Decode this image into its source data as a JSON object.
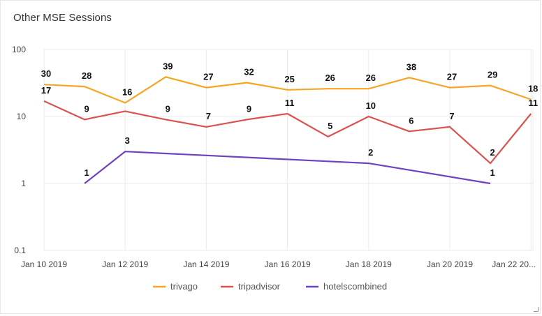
{
  "widget": {
    "title": "Other MSE Sessions"
  },
  "chart_data": {
    "type": "line",
    "y_scale": "log",
    "ylim": [
      0.1,
      100
    ],
    "y_ticks": [
      "100",
      "10",
      "1",
      "0.1"
    ],
    "x_tick_labels": [
      "Jan 10 2019",
      "Jan 12 2019",
      "Jan 14 2019",
      "Jan 16 2019",
      "Jan 18 2019",
      "Jan 20 2019",
      "Jan 22 20..."
    ],
    "x": [
      "2019-01-10",
      "2019-01-11",
      "2019-01-12",
      "2019-01-13",
      "2019-01-14",
      "2019-01-15",
      "2019-01-16",
      "2019-01-17",
      "2019-01-18",
      "2019-01-19",
      "2019-01-20",
      "2019-01-21",
      "2019-01-22"
    ],
    "series": [
      {
        "name": "trivago",
        "color": "#f5a623",
        "values": [
          30,
          28,
          16,
          39,
          27,
          32,
          25,
          26,
          26,
          38,
          27,
          29,
          18
        ]
      },
      {
        "name": "tripadvisor",
        "color": "#d9534f",
        "values": [
          17,
          9,
          12,
          9,
          7,
          9,
          11,
          5,
          10,
          6,
          7,
          2,
          11
        ]
      },
      {
        "name": "hotelscombined",
        "color": "#6f42c1",
        "values": [
          null,
          1,
          3,
          null,
          null,
          null,
          null,
          null,
          2,
          null,
          null,
          1,
          null
        ]
      }
    ],
    "data_labels": {
      "trivago": [
        "30",
        "28",
        "16",
        "39",
        "27",
        "32",
        "25",
        "26",
        "26",
        "38",
        "27",
        "29",
        "18"
      ],
      "tripadvisor": [
        "17",
        "9",
        "",
        "9",
        "7",
        "9",
        "11",
        "5",
        "10",
        "6",
        "7",
        "2",
        "11"
      ],
      "hotelscombined": [
        "",
        "1",
        "3",
        "",
        "",
        "",
        "",
        "",
        "2",
        "",
        "",
        "1",
        ""
      ]
    },
    "grid": true,
    "legend_position": "bottom"
  }
}
